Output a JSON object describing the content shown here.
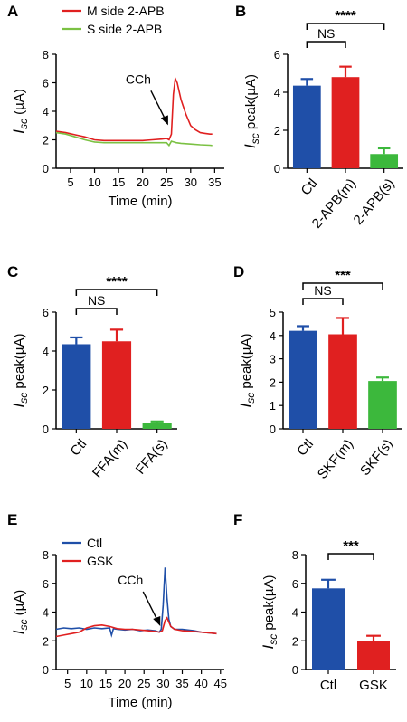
{
  "chart_data": [
    {
      "panel": "A",
      "type": "line",
      "xlabel": "Time (min)",
      "ylabel": "I_sc (µA)",
      "ylabel_main": "I",
      "ylabel_sub": "sc",
      "ylabel_unit": "(µA)",
      "xlim": [
        2,
        37
      ],
      "ylim": [
        0,
        8
      ],
      "xticks": [
        5,
        10,
        15,
        20,
        25,
        30,
        35
      ],
      "yticks": [
        0,
        2,
        4,
        6,
        8
      ],
      "annotation": "CCh",
      "annotation_x": 25.5,
      "series": [
        {
          "name": "M side 2-APB",
          "color": "#e02020",
          "x": [
            2,
            4,
            6,
            8,
            10,
            12,
            14,
            16,
            18,
            20,
            22,
            24,
            25,
            25.5,
            26,
            26.4,
            26.8,
            27.2,
            28,
            29,
            30,
            31,
            32,
            33,
            34,
            34.5
          ],
          "y": [
            2.6,
            2.5,
            2.35,
            2.2,
            2.0,
            1.95,
            1.95,
            1.95,
            1.95,
            1.95,
            2.0,
            2.05,
            2.1,
            2.0,
            2.4,
            5.2,
            6.3,
            6.0,
            4.8,
            3.8,
            3.0,
            2.7,
            2.5,
            2.45,
            2.4,
            2.4
          ]
        },
        {
          "name": "S side 2-APB",
          "color": "#7bc143",
          "x": [
            2,
            4,
            6,
            8,
            10,
            12,
            14,
            16,
            18,
            20,
            22,
            24,
            25,
            25.5,
            26,
            26.5,
            27,
            28,
            30,
            32,
            34,
            34.5
          ],
          "y": [
            2.5,
            2.4,
            2.2,
            2.0,
            1.85,
            1.8,
            1.8,
            1.8,
            1.8,
            1.8,
            1.8,
            1.8,
            1.8,
            1.6,
            1.9,
            1.85,
            1.8,
            1.75,
            1.7,
            1.65,
            1.62,
            1.6
          ]
        }
      ]
    },
    {
      "panel": "B",
      "type": "bar",
      "categories": [
        "Ctl",
        "2-APB(m)",
        "2-APB(s)"
      ],
      "values": [
        4.35,
        4.8,
        0.75
      ],
      "errors": [
        0.35,
        0.55,
        0.3
      ],
      "colors": [
        "#1f4fa8",
        "#e02020",
        "#3cb83c"
      ],
      "ylabel_main": "I",
      "ylabel_sub": "sc",
      "ylabel_unit": "peak(µA)",
      "ylim": [
        0,
        6
      ],
      "yticks": [
        0,
        2,
        4,
        6
      ],
      "sig": [
        {
          "from": 0,
          "to": 1,
          "label": "NS"
        },
        {
          "from": 0,
          "to": 2,
          "label": "****"
        }
      ]
    },
    {
      "panel": "C",
      "type": "bar",
      "categories": [
        "Ctl",
        "FFA(m)",
        "FFA(s)"
      ],
      "values": [
        4.35,
        4.5,
        0.3
      ],
      "errors": [
        0.35,
        0.6,
        0.08
      ],
      "colors": [
        "#1f4fa8",
        "#e02020",
        "#3cb83c"
      ],
      "ylabel_main": "I",
      "ylabel_sub": "sc",
      "ylabel_unit": "peak(µA)",
      "ylim": [
        0,
        6
      ],
      "yticks": [
        0,
        2,
        4,
        6
      ],
      "sig": [
        {
          "from": 0,
          "to": 1,
          "label": "NS"
        },
        {
          "from": 0,
          "to": 2,
          "label": "****"
        }
      ]
    },
    {
      "panel": "D",
      "type": "bar",
      "categories": [
        "Ctl",
        "SKF(m)",
        "SKF(s)"
      ],
      "values": [
        4.2,
        4.05,
        2.05
      ],
      "errors": [
        0.2,
        0.7,
        0.15
      ],
      "colors": [
        "#1f4fa8",
        "#e02020",
        "#3cb83c"
      ],
      "ylabel_main": "I",
      "ylabel_sub": "sc",
      "ylabel_unit": "peak(µA)",
      "ylim": [
        0,
        5
      ],
      "yticks": [
        0,
        1,
        2,
        3,
        4,
        5
      ],
      "sig": [
        {
          "from": 0,
          "to": 1,
          "label": "NS"
        },
        {
          "from": 0,
          "to": 2,
          "label": "***"
        }
      ]
    },
    {
      "panel": "E",
      "type": "line",
      "xlabel": "Time (min)",
      "ylabel_main": "I",
      "ylabel_sub": "sc",
      "ylabel_unit": "(µA)",
      "xlim": [
        2,
        46
      ],
      "ylim": [
        0,
        8
      ],
      "xticks": [
        5,
        10,
        15,
        20,
        25,
        30,
        35,
        40,
        45
      ],
      "yticks": [
        0,
        2,
        4,
        6,
        8
      ],
      "annotation": "CCh",
      "annotation_x": 29.5,
      "series": [
        {
          "name": "Ctl",
          "color": "#1f4fa8",
          "x": [
            2,
            4,
            6,
            8,
            10,
            12,
            14,
            16,
            16.5,
            17,
            18,
            20,
            22,
            24,
            26,
            28,
            29,
            29.5,
            30,
            30.5,
            31,
            31.5,
            32,
            33,
            35,
            38,
            40,
            42,
            44
          ],
          "y": [
            2.8,
            2.9,
            2.85,
            2.9,
            2.8,
            2.9,
            2.85,
            2.9,
            2.4,
            2.85,
            2.8,
            2.75,
            2.8,
            2.7,
            2.75,
            2.7,
            2.6,
            2.8,
            4.5,
            7.1,
            5.0,
            3.5,
            3.0,
            2.8,
            2.8,
            2.7,
            2.6,
            2.55,
            2.5
          ]
        },
        {
          "name": "GSK",
          "color": "#e02020",
          "x": [
            2,
            4,
            6,
            8,
            10,
            12,
            14,
            16,
            18,
            20,
            22,
            24,
            26,
            28,
            29,
            29.8,
            30.5,
            31,
            31.5,
            32,
            33,
            35,
            38,
            40,
            42,
            44
          ],
          "y": [
            2.3,
            2.4,
            2.5,
            2.6,
            2.9,
            3.05,
            3.1,
            3.0,
            2.85,
            2.8,
            2.8,
            2.75,
            2.7,
            2.65,
            2.6,
            2.7,
            3.4,
            3.6,
            3.3,
            3.0,
            2.8,
            2.7,
            2.65,
            2.6,
            2.55,
            2.5
          ]
        }
      ]
    },
    {
      "panel": "F",
      "type": "bar",
      "categories": [
        "Ctl",
        "GSK"
      ],
      "values": [
        5.65,
        2.0
      ],
      "errors": [
        0.6,
        0.35
      ],
      "colors": [
        "#1f4fa8",
        "#e02020"
      ],
      "ylabel_main": "I",
      "ylabel_sub": "sc",
      "ylabel_unit": "peak(µA)",
      "ylim": [
        0,
        8
      ],
      "yticks": [
        0,
        2,
        4,
        6,
        8
      ],
      "sig": [
        {
          "from": 0,
          "to": 1,
          "label": "***"
        }
      ]
    }
  ]
}
